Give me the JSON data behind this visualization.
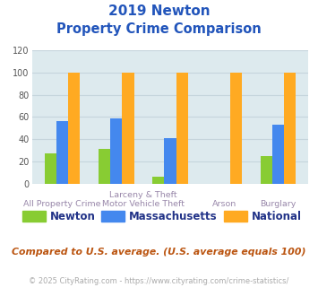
{
  "title_line1": "2019 Newton",
  "title_line2": "Property Crime Comparison",
  "series": {
    "Newton": [
      27,
      31,
      6,
      0,
      25
    ],
    "Massachusetts": [
      56,
      59,
      41,
      0,
      53
    ],
    "National": [
      100,
      100,
      100,
      100,
      100
    ]
  },
  "colors": {
    "Newton": "#88cc33",
    "Massachusetts": "#4488ee",
    "National": "#ffaa22"
  },
  "ylim": [
    0,
    120
  ],
  "yticks": [
    0,
    20,
    40,
    60,
    80,
    100,
    120
  ],
  "bar_width": 0.22,
  "bg_color": "#ddeaee",
  "title_color": "#2255bb",
  "xlabel_color": "#9988aa",
  "legend_label_color": "#223388",
  "footnote1": "Compared to U.S. average. (U.S. average equals 100)",
  "footnote2": "© 2025 CityRating.com - https://www.cityrating.com/crime-statistics/",
  "footnote1_color": "#bb5511",
  "footnote2_color": "#aaaaaa",
  "grid_color": "#c5d5dc"
}
